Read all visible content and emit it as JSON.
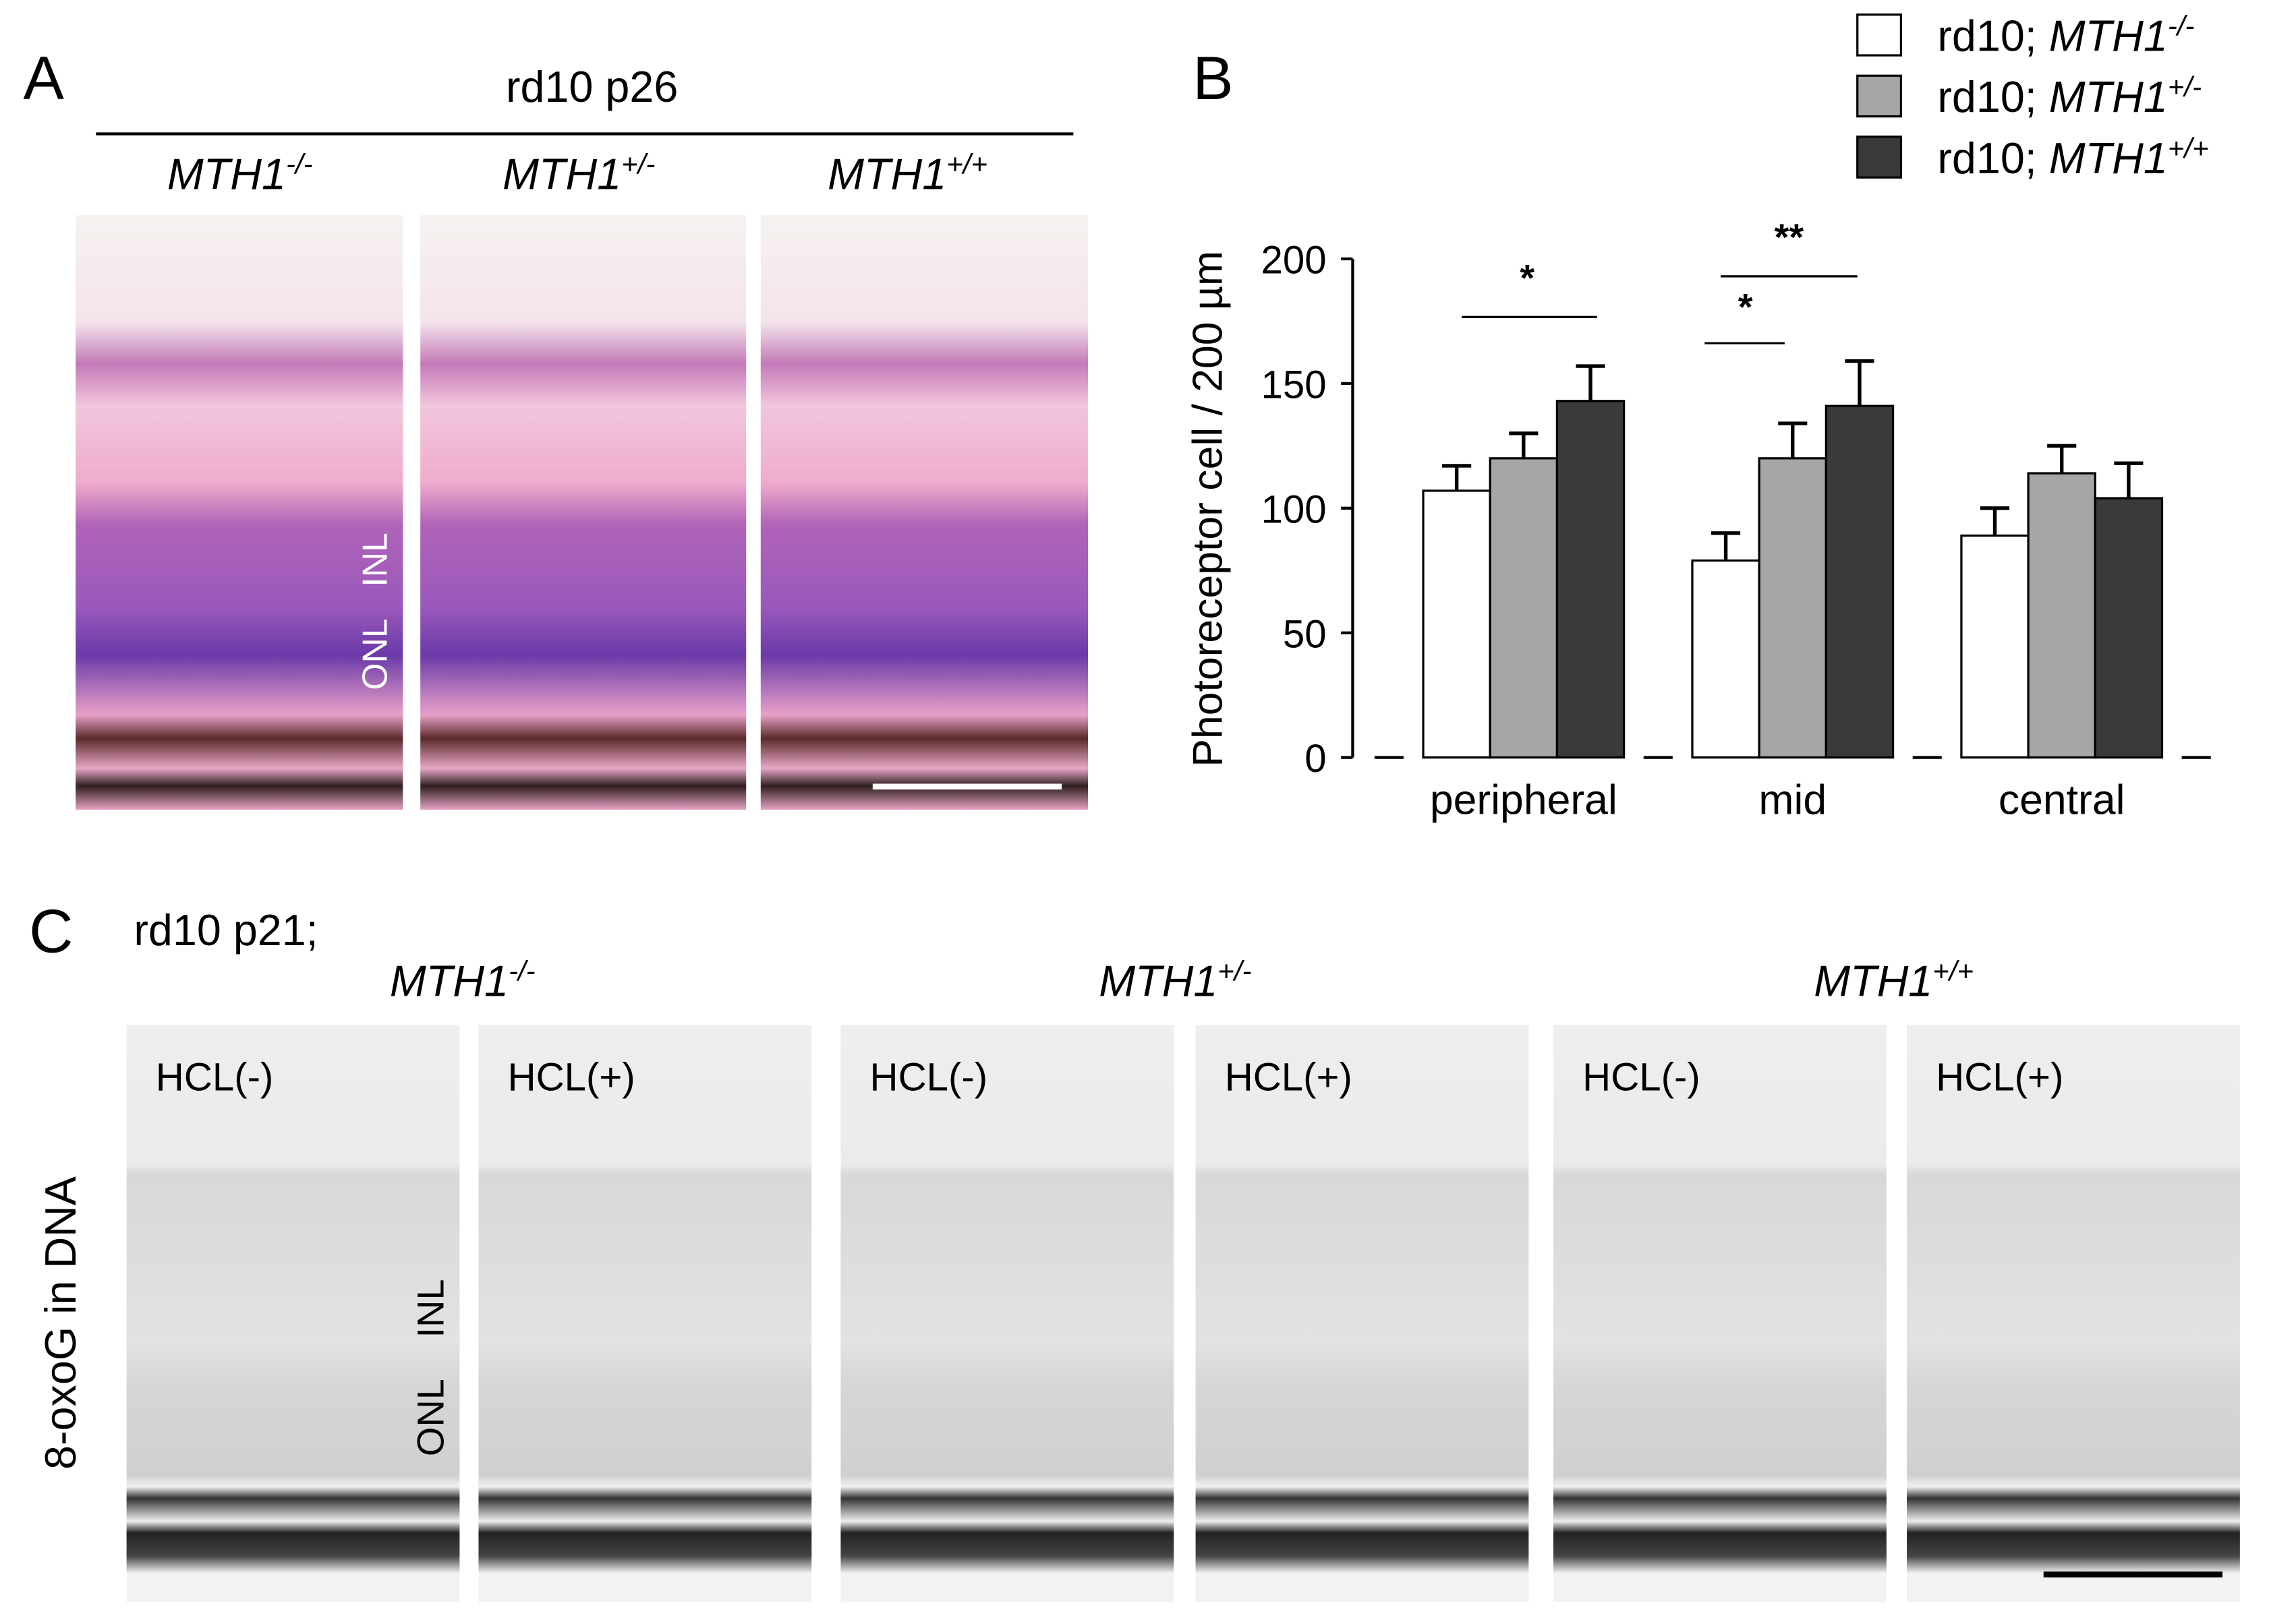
{
  "panel_a": {
    "label": "A",
    "title": "rd10 p26",
    "genotypes": [
      "MTH1-/-",
      "MTH1+/-",
      "MTH1+/+"
    ],
    "layer_labels": [
      "ONL",
      "INL"
    ]
  },
  "chart_data": {
    "label": "B",
    "type": "bar",
    "ylabel": "Photoreceptor cell / 200 µm",
    "categories": [
      "peripheral",
      "mid",
      "central"
    ],
    "series": [
      {
        "name": "rd10; MTH1-/-",
        "color": "#ffffff",
        "values": [
          107,
          79,
          89
        ],
        "errors": [
          10,
          11,
          11
        ]
      },
      {
        "name": "rd10; MTH1+/-",
        "color": "#a6a6a6",
        "values": [
          120,
          120,
          114
        ],
        "errors": [
          10,
          14,
          11
        ]
      },
      {
        "name": "rd10; MTH1+/+",
        "color": "#3a3a3a",
        "values": [
          143,
          141,
          104
        ],
        "errors": [
          14,
          18,
          14
        ]
      }
    ],
    "ylim": [
      0,
      200
    ],
    "yticks": [
      0,
      50,
      100,
      150,
      200
    ],
    "annotations": [
      "*",
      "**",
      "*"
    ],
    "legend": "top-right"
  },
  "panel_c": {
    "label": "C",
    "title": "rd10 p21;",
    "genotypes": [
      "MTH1-/-",
      "MTH1+/-",
      "MTH1+/+"
    ],
    "images": [
      "HCL(-)",
      "HCL(+)",
      "HCL(-)",
      "HCL(+)",
      "HCL(-)",
      "HCL(+)"
    ],
    "ylabel": "8-oxoG in DNA",
    "layer_labels": [
      "INL",
      "ONL"
    ]
  }
}
